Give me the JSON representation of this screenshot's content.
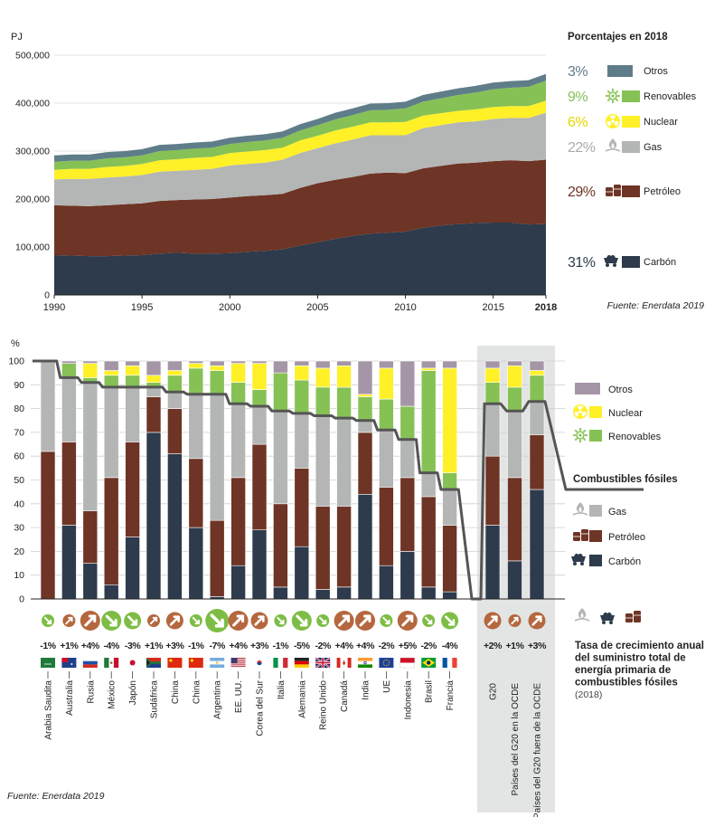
{
  "colors": {
    "carbon": "#2d3b4c",
    "petroleo": "#6e3425",
    "gas": "#b3b6b4",
    "nuclear": "#fff028",
    "renovables": "#86c156",
    "otros": "#5f7d89",
    "otros_bar": "#a596a7",
    "pct_otros": "#5f7d89",
    "pct_renov": "#86c156",
    "pct_nuclear": "#e7d600",
    "pct_gas": "#a9aca9",
    "pct_petroleo": "#6e3425",
    "pct_carbon": "#2d3b4c",
    "line": "#555555",
    "arrow_up": "#b5673e",
    "arrow_down": "#7dbd45",
    "panel": "#e3e4e4"
  },
  "chart_data": [
    {
      "type": "area",
      "ylabel": "PJ",
      "legend_title": "Porcentajes en 2018",
      "source": "Fuente: Enerdata 2019",
      "ylim": [
        0,
        500000
      ],
      "yticks": [
        0,
        100000,
        200000,
        300000,
        400000,
        500000
      ],
      "ytick_labels": [
        "0",
        "100,000",
        "200,000",
        "300,000",
        "400,000",
        "500,000"
      ],
      "xticks": [
        1990,
        1995,
        2000,
        2005,
        2010,
        2015,
        2018
      ],
      "xtick_labels": [
        "1990",
        "1995",
        "2000",
        "2005",
        "2010",
        "2015",
        "2018"
      ],
      "x": [
        1990,
        1991,
        1992,
        1993,
        1994,
        1995,
        1996,
        1997,
        1998,
        1999,
        2000,
        2001,
        2002,
        2003,
        2004,
        2005,
        2006,
        2007,
        2008,
        2009,
        2010,
        2011,
        2012,
        2013,
        2014,
        2015,
        2016,
        2017,
        2018
      ],
      "series": [
        {
          "key": "carbon",
          "name": "Carbón",
          "pct": "31%",
          "values": [
            83000,
            82000,
            81000,
            81000,
            82000,
            83000,
            86000,
            88000,
            86000,
            86000,
            87000,
            90000,
            92000,
            95000,
            103000,
            110000,
            117000,
            123000,
            128000,
            130000,
            132000,
            140000,
            145000,
            148000,
            150000,
            151000,
            151000,
            147000,
            148000
          ]
        },
        {
          "key": "petroleo",
          "name": "Petróleo",
          "pct": "29%",
          "values": [
            104000,
            104000,
            104000,
            106000,
            107000,
            108000,
            110000,
            110000,
            113000,
            114000,
            116000,
            116000,
            116000,
            116000,
            120000,
            123000,
            123000,
            123000,
            125000,
            125000,
            122000,
            124000,
            124000,
            126000,
            126000,
            128000,
            130000,
            132000,
            134000
          ]
        },
        {
          "key": "gas",
          "name": "Gas",
          "pct": "22%",
          "values": [
            54000,
            56000,
            57000,
            58000,
            58000,
            59000,
            61000,
            61000,
            62000,
            63000,
            67000,
            67000,
            68000,
            71000,
            73000,
            73000,
            76000,
            78000,
            80000,
            78000,
            79000,
            84000,
            85000,
            86000,
            86000,
            88000,
            88000,
            90000,
            98000
          ]
        },
        {
          "key": "nuclear",
          "name": "Nuclear",
          "pct": "6%",
          "values": [
            20000,
            21000,
            21000,
            22000,
            22000,
            23000,
            24000,
            24000,
            25000,
            25000,
            26000,
            26000,
            26000,
            25000,
            26000,
            26000,
            27000,
            27000,
            27000,
            27000,
            28000,
            26000,
            25000,
            24000,
            25000,
            25000,
            25000,
            25000,
            25000
          ]
        },
        {
          "key": "renovables",
          "name": "Renovables",
          "pct": "9%",
          "values": [
            17000,
            17000,
            17000,
            18000,
            18000,
            18000,
            19000,
            19000,
            19000,
            19000,
            19000,
            20000,
            20000,
            21000,
            21000,
            22000,
            23000,
            24000,
            25000,
            26000,
            28000,
            29000,
            31000,
            33000,
            35000,
            37000,
            38000,
            40000,
            42000
          ]
        },
        {
          "key": "otros",
          "name": "Otros",
          "pct": "3%",
          "values": [
            13000,
            13000,
            13000,
            13000,
            13000,
            13000,
            13000,
            13000,
            13000,
            13000,
            13000,
            13000,
            13000,
            13000,
            13000,
            13000,
            14000,
            14000,
            14000,
            14000,
            14000,
            14000,
            14000,
            14000,
            14000,
            14000,
            14000,
            14000,
            14000
          ]
        }
      ]
    },
    {
      "type": "bar",
      "stacked": true,
      "ylabel": "%",
      "ylim": [
        0,
        100
      ],
      "yticks": [
        0,
        10,
        20,
        30,
        40,
        50,
        60,
        70,
        80,
        90,
        100
      ],
      "ytick_labels": [
        "0",
        "10",
        "20",
        "30",
        "40",
        "50",
        "60",
        "70",
        "80",
        "90",
        "100"
      ],
      "legend_title_line": "Combustibles fósiles",
      "legend_entries": [
        {
          "key": "otros",
          "name": "Otros"
        },
        {
          "key": "nuclear",
          "name": "Nuclear"
        },
        {
          "key": "renovables",
          "name": "Renovables"
        },
        {
          "key": "gas",
          "name": "Gas"
        },
        {
          "key": "petroleo",
          "name": "Petróleo"
        },
        {
          "key": "carbon",
          "name": "Carbón"
        }
      ],
      "growth_title": "Tasa de crecimiento anual del suministro total de energía primaria de combustibles fósiles",
      "growth_year": "(2018)",
      "source": "Fuente: Enerdata 2019",
      "countries": [
        {
          "name": "Arabia Saudita",
          "flag": "sa",
          "growth": "-1%",
          "dir": "down",
          "size": "s",
          "carbon": 0,
          "petroleo": 62,
          "gas": 38,
          "nuclear": 0,
          "renovables": 0,
          "otros": 0
        },
        {
          "name": "Australia",
          "flag": "au",
          "growth": "+1%",
          "dir": "up",
          "size": "s",
          "carbon": 31,
          "petroleo": 35,
          "gas": 27,
          "nuclear": 0,
          "renovables": 6,
          "otros": 1
        },
        {
          "name": "Rusia",
          "flag": "ru",
          "growth": "+4%",
          "dir": "up",
          "size": "l",
          "carbon": 15,
          "petroleo": 22,
          "gas": 54,
          "nuclear": 6,
          "renovables": 2,
          "otros": 1
        },
        {
          "name": "México",
          "flag": "mx",
          "growth": "-4%",
          "dir": "down",
          "size": "l",
          "carbon": 6,
          "petroleo": 45,
          "gas": 38,
          "nuclear": 2,
          "renovables": 5,
          "otros": 4
        },
        {
          "name": "Japón",
          "flag": "jp",
          "growth": "-3%",
          "dir": "down",
          "size": "m",
          "carbon": 26,
          "petroleo": 40,
          "gas": 23,
          "nuclear": 4,
          "renovables": 5,
          "otros": 2
        },
        {
          "name": "Sudáfrica",
          "flag": "za",
          "growth": "+1%",
          "dir": "up",
          "size": "s",
          "carbon": 70,
          "petroleo": 15,
          "gas": 4,
          "nuclear": 3,
          "renovables": 2,
          "otros": 6
        },
        {
          "name": "China",
          "flag": "cn",
          "growth": "+3%",
          "dir": "up",
          "size": "m",
          "carbon": 61,
          "petroleo": 19,
          "gas": 7,
          "nuclear": 2,
          "renovables": 7,
          "otros": 4
        },
        {
          "name": "China",
          "flag": "cn",
          "growth": "-1%",
          "dir": "down",
          "size": "s",
          "carbon": 30,
          "petroleo": 29,
          "gas": 27,
          "nuclear": 2,
          "renovables": 11,
          "otros": 1
        },
        {
          "name": "Argentina",
          "flag": "ar",
          "growth": "-7%",
          "dir": "down",
          "size": "xl",
          "carbon": 1,
          "petroleo": 32,
          "gas": 53,
          "nuclear": 2,
          "renovables": 10,
          "otros": 2
        },
        {
          "name": "EE. UU.",
          "flag": "us",
          "growth": "+4%",
          "dir": "up",
          "size": "l",
          "carbon": 14,
          "petroleo": 37,
          "gas": 31,
          "nuclear": 8,
          "renovables": 9,
          "otros": 1
        },
        {
          "name": "Corea del Sur",
          "flag": "kr",
          "growth": "+3%",
          "dir": "up",
          "size": "m",
          "carbon": 29,
          "petroleo": 36,
          "gas": 16,
          "nuclear": 11,
          "renovables": 7,
          "otros": 1
        },
        {
          "name": "Italia",
          "flag": "it",
          "growth": "-1%",
          "dir": "down",
          "size": "s",
          "carbon": 5,
          "petroleo": 35,
          "gas": 39,
          "nuclear": 0,
          "renovables": 16,
          "otros": 5
        },
        {
          "name": "Alemania",
          "flag": "de",
          "growth": "-5%",
          "dir": "down",
          "size": "l",
          "carbon": 22,
          "petroleo": 33,
          "gas": 23,
          "nuclear": 6,
          "renovables": 14,
          "otros": 2
        },
        {
          "name": "Reino Unido",
          "flag": "gb",
          "growth": "-2%",
          "dir": "down",
          "size": "s",
          "carbon": 4,
          "petroleo": 35,
          "gas": 38,
          "nuclear": 8,
          "renovables": 12,
          "otros": 3
        },
        {
          "name": "Canadá",
          "flag": "ca",
          "growth": "+4%",
          "dir": "up",
          "size": "l",
          "carbon": 5,
          "petroleo": 34,
          "gas": 37,
          "nuclear": 9,
          "renovables": 13,
          "otros": 2
        },
        {
          "name": "India",
          "flag": "in",
          "growth": "+4%",
          "dir": "up",
          "size": "l",
          "carbon": 44,
          "petroleo": 26,
          "gas": 5,
          "nuclear": 1,
          "renovables": 10,
          "otros": 14
        },
        {
          "name": "UE",
          "flag": "eu",
          "growth": "-2%",
          "dir": "down",
          "size": "s",
          "carbon": 14,
          "petroleo": 33,
          "gas": 24,
          "nuclear": 13,
          "renovables": 13,
          "otros": 3
        },
        {
          "name": "Indonesia",
          "flag": "id",
          "growth": "+5%",
          "dir": "up",
          "size": "l",
          "carbon": 20,
          "petroleo": 31,
          "gas": 16,
          "nuclear": 0,
          "renovables": 14,
          "otros": 19
        },
        {
          "name": "Brasil",
          "flag": "br",
          "growth": "-2%",
          "dir": "down",
          "size": "s",
          "carbon": 5,
          "petroleo": 38,
          "gas": 10,
          "nuclear": 1,
          "renovables": 43,
          "otros": 3
        },
        {
          "name": "Francia",
          "flag": "fr",
          "growth": "-4%",
          "dir": "down",
          "size": "m",
          "carbon": 3,
          "petroleo": 28,
          "gas": 15,
          "nuclear": 44,
          "renovables": 7,
          "otros": 3
        }
      ],
      "groups": [
        {
          "name": "G20",
          "growth": "+2%",
          "dir": "up",
          "size": "m",
          "carbon": 31,
          "petroleo": 29,
          "gas": 22,
          "nuclear": 6,
          "renovables": 9,
          "otros": 3
        },
        {
          "name": "Países del G20 en la OCDE",
          "growth": "+1%",
          "dir": "up",
          "size": "s",
          "carbon": 16,
          "petroleo": 35,
          "gas": 28,
          "nuclear": 9,
          "renovables": 10,
          "otros": 2
        },
        {
          "name": "Países del G20 fuera de la OCDE",
          "growth": "+3%",
          "dir": "up",
          "size": "m",
          "carbon": 46,
          "petroleo": 23,
          "gas": 14,
          "nuclear": 2,
          "renovables": 11,
          "otros": 4
        }
      ],
      "fossil_line_end": 46
    }
  ]
}
